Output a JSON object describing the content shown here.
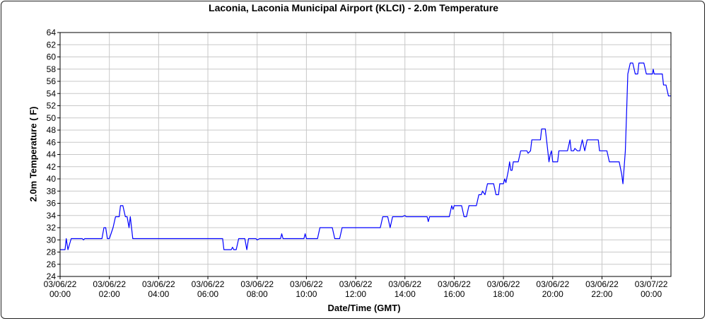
{
  "chart_data": {
    "type": "line",
    "title": "Laconia, Laconia Municipal Airport (KLCI) - 2.0m Temperature",
    "xlabel": "Date/Time (GMT)",
    "ylabel": "2.0m Temperature ( F)",
    "ylim": [
      24,
      64
    ],
    "y_ticks": [
      24,
      26,
      28,
      30,
      32,
      34,
      36,
      38,
      40,
      42,
      44,
      46,
      48,
      50,
      52,
      54,
      56,
      58,
      60,
      62,
      64
    ],
    "xlim_hours": [
      0,
      24.8
    ],
    "x_ticks": [
      {
        "hour": 0,
        "date": "03/06/22",
        "time": "00:00"
      },
      {
        "hour": 2,
        "date": "03/06/22",
        "time": "02:00"
      },
      {
        "hour": 4,
        "date": "03/06/22",
        "time": "04:00"
      },
      {
        "hour": 6,
        "date": "03/06/22",
        "time": "06:00"
      },
      {
        "hour": 8,
        "date": "03/06/22",
        "time": "08:00"
      },
      {
        "hour": 10,
        "date": "03/06/22",
        "time": "10:00"
      },
      {
        "hour": 12,
        "date": "03/06/22",
        "time": "12:00"
      },
      {
        "hour": 14,
        "date": "03/06/22",
        "time": "14:00"
      },
      {
        "hour": 16,
        "date": "03/06/22",
        "time": "16:00"
      },
      {
        "hour": 18,
        "date": "03/06/22",
        "time": "18:00"
      },
      {
        "hour": 20,
        "date": "03/06/22",
        "time": "20:00"
      },
      {
        "hour": 22,
        "date": "03/06/22",
        "time": "22:00"
      },
      {
        "hour": 24,
        "date": "03/07/22",
        "time": "00:00"
      }
    ],
    "grid": true,
    "series": [
      {
        "color": "#0000ff",
        "points": [
          [
            0.0,
            28.4
          ],
          [
            0.2,
            28.4
          ],
          [
            0.25,
            30.2
          ],
          [
            0.32,
            28.4
          ],
          [
            0.45,
            30.2
          ],
          [
            0.9,
            30.2
          ],
          [
            0.95,
            30.0
          ],
          [
            1.0,
            30.2
          ],
          [
            1.7,
            30.2
          ],
          [
            1.78,
            32.0
          ],
          [
            1.85,
            32.0
          ],
          [
            1.92,
            30.2
          ],
          [
            2.0,
            30.2
          ],
          [
            2.15,
            32.0
          ],
          [
            2.25,
            33.8
          ],
          [
            2.4,
            33.8
          ],
          [
            2.45,
            35.6
          ],
          [
            2.55,
            35.6
          ],
          [
            2.65,
            33.8
          ],
          [
            2.72,
            33.8
          ],
          [
            2.8,
            32.0
          ],
          [
            2.85,
            33.8
          ],
          [
            2.95,
            30.2
          ],
          [
            3.5,
            30.2
          ],
          [
            6.6,
            30.2
          ],
          [
            6.65,
            28.4
          ],
          [
            6.95,
            28.4
          ],
          [
            7.0,
            28.8
          ],
          [
            7.05,
            28.4
          ],
          [
            7.15,
            28.4
          ],
          [
            7.25,
            30.2
          ],
          [
            7.5,
            30.2
          ],
          [
            7.58,
            28.4
          ],
          [
            7.65,
            30.2
          ],
          [
            7.95,
            30.2
          ],
          [
            8.0,
            30.0
          ],
          [
            8.1,
            30.2
          ],
          [
            8.95,
            30.2
          ],
          [
            9.0,
            31.0
          ],
          [
            9.05,
            30.2
          ],
          [
            9.9,
            30.2
          ],
          [
            9.95,
            31.0
          ],
          [
            10.0,
            30.2
          ],
          [
            10.45,
            30.2
          ],
          [
            10.55,
            32.0
          ],
          [
            11.05,
            32.0
          ],
          [
            11.15,
            30.2
          ],
          [
            11.35,
            30.2
          ],
          [
            11.45,
            32.0
          ],
          [
            13.0,
            32.0
          ],
          [
            13.1,
            33.8
          ],
          [
            13.3,
            33.8
          ],
          [
            13.4,
            32.0
          ],
          [
            13.5,
            33.8
          ],
          [
            13.9,
            33.8
          ],
          [
            14.0,
            34.0
          ],
          [
            14.05,
            33.8
          ],
          [
            14.9,
            33.8
          ],
          [
            14.95,
            33.0
          ],
          [
            15.0,
            33.8
          ],
          [
            15.8,
            33.8
          ],
          [
            15.9,
            35.6
          ],
          [
            15.95,
            35.0
          ],
          [
            16.0,
            35.6
          ],
          [
            16.3,
            35.6
          ],
          [
            16.4,
            33.8
          ],
          [
            16.5,
            33.8
          ],
          [
            16.6,
            35.6
          ],
          [
            16.9,
            35.6
          ],
          [
            17.0,
            37.4
          ],
          [
            17.1,
            37.4
          ],
          [
            17.15,
            38.0
          ],
          [
            17.25,
            37.4
          ],
          [
            17.35,
            39.2
          ],
          [
            17.6,
            39.2
          ],
          [
            17.7,
            37.4
          ],
          [
            17.8,
            37.4
          ],
          [
            17.85,
            39.2
          ],
          [
            18.0,
            39.2
          ],
          [
            18.05,
            40.0
          ],
          [
            18.1,
            39.4
          ],
          [
            18.2,
            41.4
          ],
          [
            18.25,
            42.8
          ],
          [
            18.3,
            41.4
          ],
          [
            18.35,
            41.4
          ],
          [
            18.4,
            42.8
          ],
          [
            18.6,
            42.8
          ],
          [
            18.7,
            44.6
          ],
          [
            18.95,
            44.6
          ],
          [
            19.0,
            44.2
          ],
          [
            19.1,
            44.6
          ],
          [
            19.15,
            46.4
          ],
          [
            19.5,
            46.4
          ],
          [
            19.55,
            48.2
          ],
          [
            19.7,
            48.2
          ],
          [
            19.8,
            44.6
          ],
          [
            19.85,
            42.8
          ],
          [
            19.9,
            44.0
          ],
          [
            19.95,
            44.6
          ],
          [
            20.0,
            42.8
          ],
          [
            20.2,
            42.8
          ],
          [
            20.25,
            44.6
          ],
          [
            20.6,
            44.6
          ],
          [
            20.7,
            46.4
          ],
          [
            20.75,
            44.6
          ],
          [
            20.85,
            44.6
          ],
          [
            20.9,
            45.0
          ],
          [
            21.0,
            44.6
          ],
          [
            21.1,
            44.6
          ],
          [
            21.2,
            46.4
          ],
          [
            21.3,
            44.6
          ],
          [
            21.4,
            46.4
          ],
          [
            21.85,
            46.4
          ],
          [
            21.9,
            44.6
          ],
          [
            22.2,
            44.6
          ],
          [
            22.3,
            42.8
          ],
          [
            22.7,
            42.8
          ],
          [
            22.8,
            40.8
          ],
          [
            22.85,
            39.2
          ],
          [
            22.95,
            44.6
          ],
          [
            23.0,
            51.0
          ],
          [
            23.05,
            57.2
          ],
          [
            23.15,
            59.0
          ],
          [
            23.25,
            59.0
          ],
          [
            23.35,
            57.2
          ],
          [
            23.45,
            57.2
          ],
          [
            23.5,
            59.0
          ],
          [
            23.7,
            59.0
          ],
          [
            23.8,
            57.2
          ],
          [
            24.05,
            57.2
          ],
          [
            24.08,
            58.0
          ],
          [
            24.12,
            57.2
          ],
          [
            24.45,
            57.2
          ],
          [
            24.5,
            55.4
          ],
          [
            24.6,
            55.4
          ],
          [
            24.7,
            53.6
          ],
          [
            24.8,
            53.6
          ]
        ]
      }
    ]
  }
}
